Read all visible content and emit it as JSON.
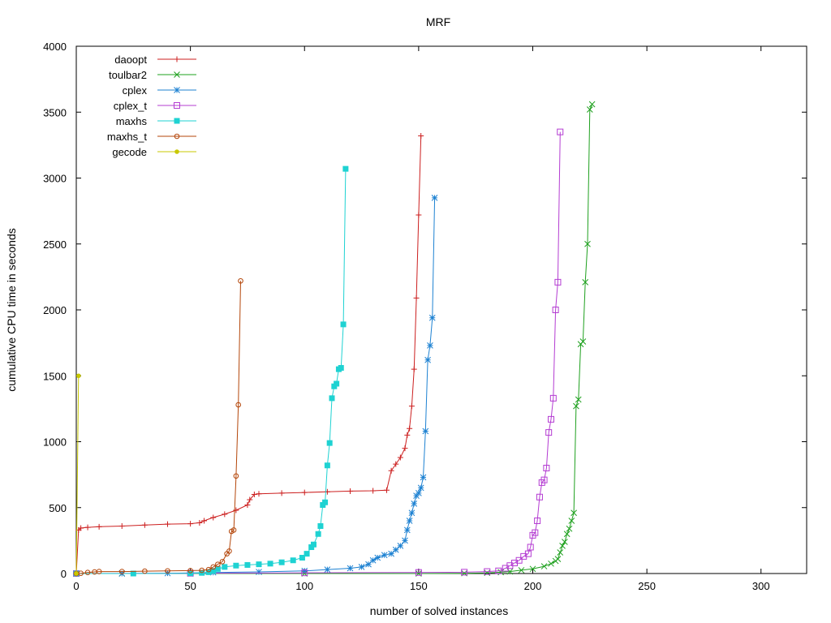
{
  "chart_data": {
    "type": "line",
    "title": "MRF",
    "xlabel": "number of solved instances",
    "ylabel": "cumulative CPU time in seconds",
    "xlim": [
      0,
      320
    ],
    "ylim": [
      0,
      4000
    ],
    "xticks": [
      0,
      50,
      100,
      150,
      200,
      250,
      300
    ],
    "yticks": [
      0,
      500,
      1000,
      1500,
      2000,
      2500,
      3000,
      3500,
      4000
    ],
    "xtick_labels": [
      "0",
      "50",
      "100",
      "150",
      "200",
      "250",
      "300"
    ],
    "ytick_labels": [
      "0",
      "500",
      "1000",
      "1500",
      "2000",
      "2500",
      "3000",
      "3500",
      "4000"
    ],
    "grid": false,
    "legend_position": "top-left",
    "series": [
      {
        "name": "daoopt",
        "color": "#cc1f1f",
        "marker": "plus",
        "points": [
          [
            0,
            0
          ],
          [
            1,
            330
          ],
          [
            2,
            345
          ],
          [
            5,
            350
          ],
          [
            10,
            355
          ],
          [
            20,
            360
          ],
          [
            30,
            368
          ],
          [
            40,
            375
          ],
          [
            50,
            378
          ],
          [
            54,
            385
          ],
          [
            56,
            400
          ],
          [
            60,
            425
          ],
          [
            65,
            450
          ],
          [
            70,
            480
          ],
          [
            75,
            520
          ],
          [
            76,
            560
          ],
          [
            78,
            600
          ],
          [
            80,
            605
          ],
          [
            90,
            610
          ],
          [
            100,
            615
          ],
          [
            110,
            620
          ],
          [
            120,
            625
          ],
          [
            130,
            628
          ],
          [
            136,
            632
          ],
          [
            138,
            780
          ],
          [
            140,
            830
          ],
          [
            142,
            880
          ],
          [
            144,
            950
          ],
          [
            145,
            1050
          ],
          [
            146,
            1100
          ],
          [
            147,
            1270
          ],
          [
            148,
            1550
          ],
          [
            149,
            2090
          ],
          [
            150,
            2720
          ],
          [
            151,
            3320
          ]
        ]
      },
      {
        "name": "toulbar2",
        "color": "#1ea01e",
        "marker": "x",
        "points": [
          [
            0,
            0
          ],
          [
            20,
            0
          ],
          [
            50,
            0
          ],
          [
            100,
            0
          ],
          [
            150,
            0
          ],
          [
            170,
            2
          ],
          [
            180,
            5
          ],
          [
            186,
            10
          ],
          [
            190,
            15
          ],
          [
            195,
            25
          ],
          [
            200,
            35
          ],
          [
            205,
            55
          ],
          [
            208,
            75
          ],
          [
            210,
            95
          ],
          [
            211,
            110
          ],
          [
            212,
            160
          ],
          [
            213,
            210
          ],
          [
            214,
            240
          ],
          [
            215,
            300
          ],
          [
            216,
            340
          ],
          [
            217,
            400
          ],
          [
            218,
            460
          ],
          [
            219,
            1270
          ],
          [
            220,
            1320
          ],
          [
            221,
            1740
          ],
          [
            222,
            1760
          ],
          [
            223,
            2210
          ],
          [
            224,
            2500
          ],
          [
            225,
            3520
          ],
          [
            226,
            3560
          ]
        ]
      },
      {
        "name": "cplex",
        "color": "#1e82d2",
        "marker": "star",
        "points": [
          [
            0,
            0
          ],
          [
            20,
            0
          ],
          [
            40,
            2
          ],
          [
            50,
            5
          ],
          [
            60,
            8
          ],
          [
            80,
            12
          ],
          [
            100,
            20
          ],
          [
            110,
            30
          ],
          [
            120,
            40
          ],
          [
            125,
            50
          ],
          [
            128,
            70
          ],
          [
            130,
            100
          ],
          [
            132,
            120
          ],
          [
            135,
            140
          ],
          [
            138,
            150
          ],
          [
            140,
            180
          ],
          [
            142,
            210
          ],
          [
            144,
            250
          ],
          [
            145,
            330
          ],
          [
            146,
            400
          ],
          [
            147,
            460
          ],
          [
            148,
            530
          ],
          [
            149,
            590
          ],
          [
            150,
            610
          ],
          [
            151,
            650
          ],
          [
            152,
            730
          ],
          [
            153,
            1080
          ],
          [
            154,
            1620
          ],
          [
            155,
            1730
          ],
          [
            156,
            1940
          ],
          [
            157,
            2850
          ]
        ]
      },
      {
        "name": "cplex_t",
        "color": "#b43cd2",
        "marker": "square",
        "points": [
          [
            0,
            0
          ],
          [
            50,
            2
          ],
          [
            100,
            5
          ],
          [
            150,
            8
          ],
          [
            170,
            10
          ],
          [
            180,
            15
          ],
          [
            185,
            20
          ],
          [
            188,
            40
          ],
          [
            190,
            60
          ],
          [
            192,
            80
          ],
          [
            194,
            100
          ],
          [
            196,
            130
          ],
          [
            198,
            150
          ],
          [
            199,
            200
          ],
          [
            200,
            290
          ],
          [
            201,
            310
          ],
          [
            202,
            400
          ],
          [
            203,
            580
          ],
          [
            204,
            690
          ],
          [
            205,
            710
          ],
          [
            206,
            800
          ],
          [
            207,
            1070
          ],
          [
            208,
            1170
          ],
          [
            209,
            1330
          ],
          [
            210,
            2000
          ],
          [
            211,
            2210
          ],
          [
            212,
            3350
          ]
        ]
      },
      {
        "name": "maxhs",
        "color": "#1ed2d2",
        "marker": "filled-square",
        "points": [
          [
            0,
            0
          ],
          [
            25,
            0
          ],
          [
            50,
            2
          ],
          [
            55,
            5
          ],
          [
            58,
            10
          ],
          [
            60,
            20
          ],
          [
            62,
            35
          ],
          [
            65,
            50
          ],
          [
            70,
            60
          ],
          [
            75,
            65
          ],
          [
            80,
            70
          ],
          [
            85,
            75
          ],
          [
            90,
            85
          ],
          [
            95,
            100
          ],
          [
            99,
            120
          ],
          [
            101,
            150
          ],
          [
            103,
            200
          ],
          [
            104,
            220
          ],
          [
            106,
            300
          ],
          [
            107,
            360
          ],
          [
            108,
            520
          ],
          [
            109,
            540
          ],
          [
            110,
            820
          ],
          [
            111,
            990
          ],
          [
            112,
            1330
          ],
          [
            113,
            1420
          ],
          [
            114,
            1440
          ],
          [
            115,
            1550
          ],
          [
            116,
            1560
          ],
          [
            117,
            1890
          ],
          [
            118,
            3070
          ]
        ]
      },
      {
        "name": "maxhs_t",
        "color": "#b4460a",
        "marker": "circle",
        "points": [
          [
            0,
            0
          ],
          [
            2,
            2
          ],
          [
            5,
            8
          ],
          [
            8,
            12
          ],
          [
            10,
            15
          ],
          [
            20,
            15
          ],
          [
            30,
            18
          ],
          [
            40,
            20
          ],
          [
            50,
            22
          ],
          [
            55,
            24
          ],
          [
            58,
            30
          ],
          [
            60,
            50
          ],
          [
            62,
            70
          ],
          [
            64,
            90
          ],
          [
            66,
            150
          ],
          [
            67,
            170
          ],
          [
            68,
            320
          ],
          [
            69,
            330
          ],
          [
            70,
            740
          ],
          [
            71,
            1280
          ],
          [
            72,
            2220
          ]
        ]
      },
      {
        "name": "gecode",
        "color": "#c8c800",
        "marker": "filled-circle",
        "points": [
          [
            0,
            0
          ],
          [
            1,
            1500
          ]
        ]
      }
    ]
  }
}
